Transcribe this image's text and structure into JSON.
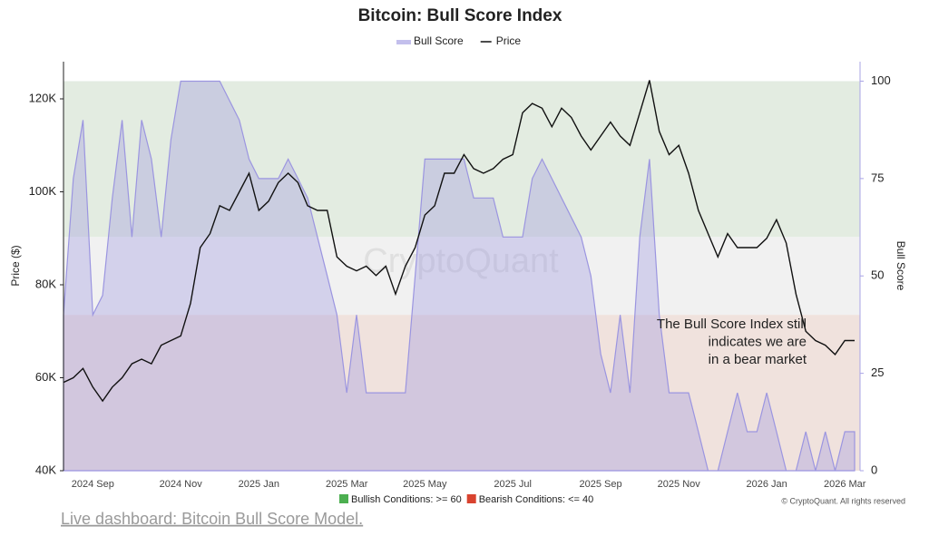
{
  "chart_data": {
    "type": "dual-axis-area-line",
    "title": "Bitcoin: Bull Score Index",
    "categories": [
      null,
      null,
      null,
      "2024 Sep",
      null,
      null,
      null,
      null,
      null,
      null,
      null,
      null,
      "2024 Nov",
      null,
      null,
      null,
      null,
      null,
      null,
      null,
      "2025 Jan",
      null,
      null,
      null,
      null,
      null,
      null,
      null,
      null,
      "2025 Mar",
      null,
      null,
      null,
      null,
      null,
      null,
      null,
      "2025 May",
      null,
      null,
      null,
      null,
      null,
      null,
      null,
      null,
      "2025 Jul",
      null,
      null,
      null,
      null,
      null,
      null,
      null,
      null,
      "2025 Sep",
      null,
      null,
      null,
      null,
      null,
      null,
      null,
      "2025 Nov",
      null,
      null,
      null,
      null,
      null,
      null,
      null,
      null,
      "2026 Jan",
      null,
      null,
      null,
      null,
      null,
      null,
      null,
      "2026 Mar",
      null
    ],
    "series": [
      {
        "name": "Bull Score",
        "color": "#9b95e0",
        "axis": "y2",
        "values": [
          40,
          75,
          90,
          40,
          45,
          70,
          90,
          60,
          90,
          80,
          60,
          85,
          100,
          100,
          100,
          100,
          100,
          95,
          90,
          80,
          75,
          75,
          75,
          80,
          75,
          70,
          60,
          50,
          40,
          20,
          40,
          20,
          20,
          20,
          20,
          20,
          50,
          80,
          80,
          80,
          80,
          80,
          70,
          70,
          70,
          60,
          60,
          60,
          75,
          80,
          75,
          70,
          65,
          60,
          50,
          30,
          20,
          40,
          20,
          60,
          80,
          40,
          20,
          20,
          20,
          10,
          0,
          0,
          10,
          20,
          10,
          10,
          20,
          10,
          0,
          0,
          10,
          0,
          10,
          0,
          10,
          10
        ]
      },
      {
        "name": "Price",
        "color": "#111111",
        "values": [
          59000,
          60000,
          62000,
          58000,
          55000,
          58000,
          60000,
          63000,
          64000,
          63000,
          67000,
          68000,
          69000,
          76000,
          88000,
          91000,
          97000,
          96000,
          100000,
          104000,
          96000,
          98000,
          102000,
          104000,
          102000,
          97000,
          96000,
          96000,
          86000,
          84000,
          83000,
          84000,
          82000,
          84000,
          78000,
          84000,
          88000,
          95000,
          97000,
          104000,
          104000,
          108000,
          105000,
          104000,
          105000,
          107000,
          108000,
          117000,
          119000,
          118000,
          114000,
          118000,
          116000,
          112000,
          109000,
          112000,
          115000,
          112000,
          110000,
          117000,
          124000,
          113000,
          108000,
          110000,
          104000,
          96000,
          91000,
          86000,
          91000,
          88000,
          88000,
          88000,
          90000,
          94000,
          89000,
          78000,
          70000,
          68000,
          67000,
          65000,
          68000,
          68000
        ]
      }
    ],
    "ylabel": "Price ($)",
    "y2label": "Bull Score",
    "ylim": [
      40000,
      128000
    ],
    "yticks": [
      {
        "value": 40000,
        "label": "40K"
      },
      {
        "value": 60000,
        "label": "60K"
      },
      {
        "value": 80000,
        "label": "80K"
      },
      {
        "value": 100000,
        "label": "100K"
      },
      {
        "value": 120000,
        "label": "120K"
      }
    ],
    "y2lim": [
      0,
      105
    ],
    "y2ticks": [
      0,
      25,
      50,
      75,
      100
    ],
    "bands": [
      {
        "from": 60,
        "to": 100,
        "color": "#e3ece1"
      },
      {
        "from": 40,
        "to": 60,
        "color": "#f1f1f1"
      },
      {
        "from": 0,
        "to": 40,
        "color": "#f0e2dd"
      }
    ],
    "annotation": [
      "The Bull Score Index still",
      "indicates we are",
      "in a bear market"
    ],
    "watermark": "CryptoQuant",
    "conditions_legend": [
      {
        "label": "Bullish Conditions: >= 60",
        "color": "#4caf50"
      },
      {
        "label": "Bearish Conditions: <= 40",
        "color": "#d9432f"
      }
    ],
    "credit": "© CryptoQuant. All rights reserved",
    "link": "Live dashboard: Bitcoin Bull Score Model."
  }
}
